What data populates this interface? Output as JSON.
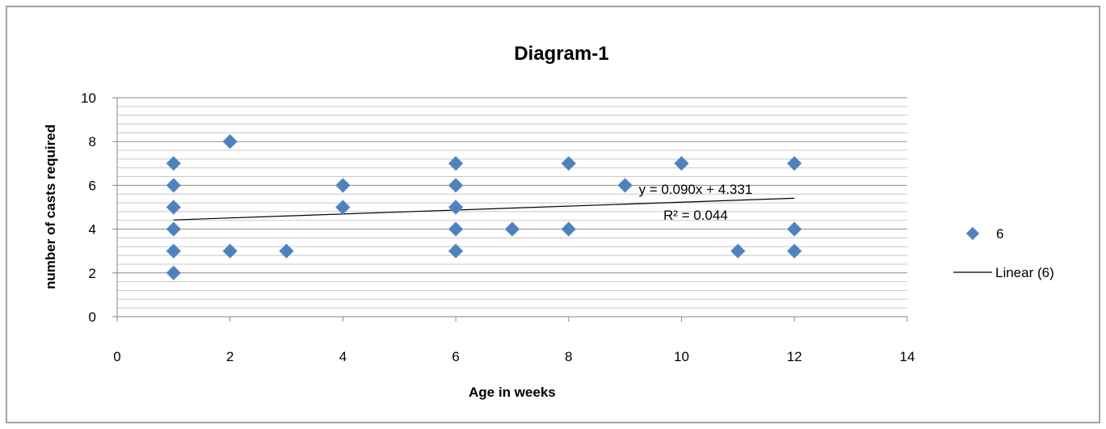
{
  "chart_data": {
    "type": "scatter",
    "title": "Diagram-1",
    "xlabel": "Age in weeks",
    "ylabel": "number of casts required",
    "xlim": [
      0,
      14
    ],
    "ylim": [
      0,
      10
    ],
    "x_ticks": [
      0,
      2,
      4,
      6,
      8,
      10,
      12,
      14
    ],
    "y_ticks": [
      0,
      2,
      4,
      6,
      8,
      10
    ],
    "grid": "horizontal major and minor",
    "legend_position": "right",
    "series": [
      {
        "name": "6",
        "color": "#4f81bd",
        "marker": "diamond",
        "points": [
          {
            "x": 1,
            "y": 7
          },
          {
            "x": 1,
            "y": 6
          },
          {
            "x": 1,
            "y": 5
          },
          {
            "x": 1,
            "y": 4
          },
          {
            "x": 1,
            "y": 3
          },
          {
            "x": 1,
            "y": 2
          },
          {
            "x": 2,
            "y": 8
          },
          {
            "x": 2,
            "y": 3
          },
          {
            "x": 3,
            "y": 3
          },
          {
            "x": 4,
            "y": 6
          },
          {
            "x": 4,
            "y": 5
          },
          {
            "x": 6,
            "y": 7
          },
          {
            "x": 6,
            "y": 6
          },
          {
            "x": 6,
            "y": 5
          },
          {
            "x": 6,
            "y": 4
          },
          {
            "x": 6,
            "y": 3
          },
          {
            "x": 7,
            "y": 4
          },
          {
            "x": 8,
            "y": 7
          },
          {
            "x": 8,
            "y": 4
          },
          {
            "x": 9,
            "y": 6
          },
          {
            "x": 10,
            "y": 7
          },
          {
            "x": 11,
            "y": 3
          },
          {
            "x": 12,
            "y": 7
          },
          {
            "x": 12,
            "y": 4
          },
          {
            "x": 12,
            "y": 3
          }
        ]
      }
    ],
    "trendline": {
      "name": "Linear (6)",
      "slope": 0.09,
      "intercept": 4.331,
      "x_range": [
        1,
        12
      ],
      "equation_label": "y = 0.090x + 4.331",
      "r2_label": "R² = 0.044"
    }
  }
}
